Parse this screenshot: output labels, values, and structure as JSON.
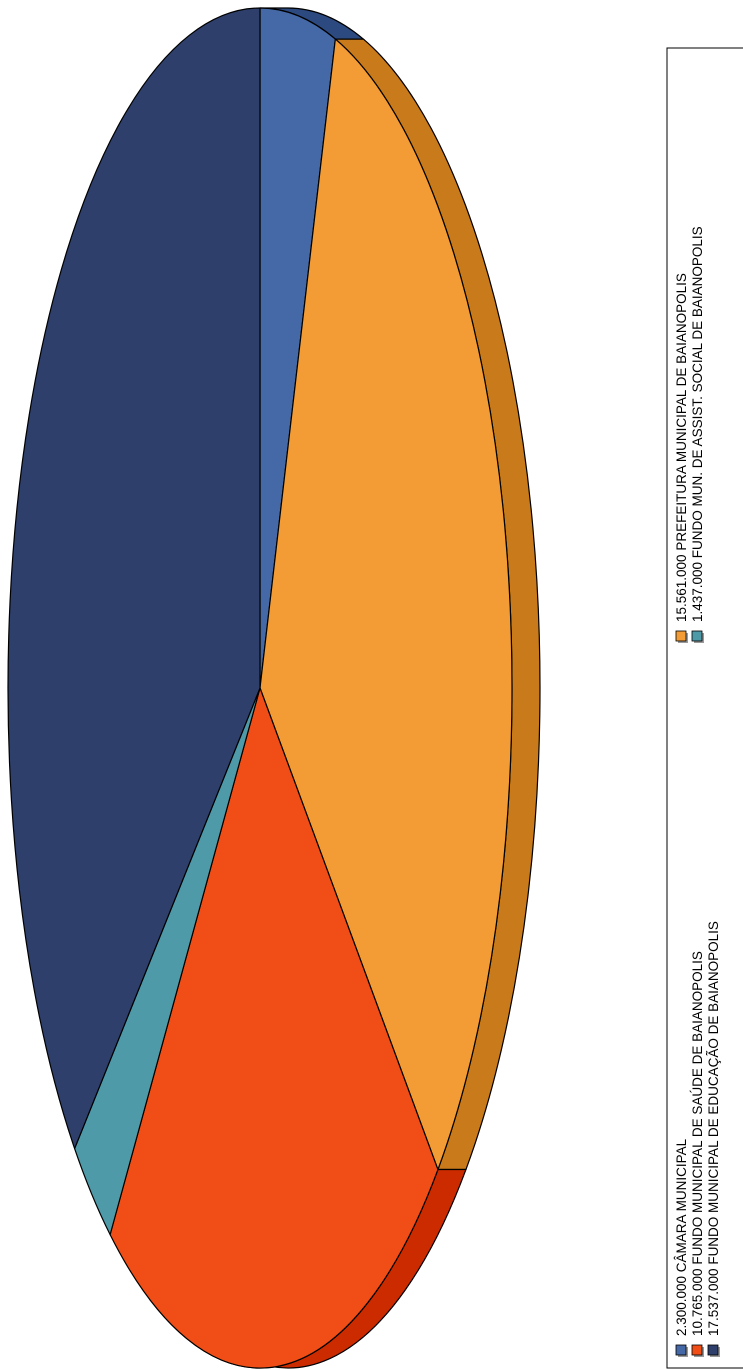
{
  "chart_data": {
    "type": "pie",
    "title": "",
    "series": [
      {
        "name": "CÂMARA MUNICIPAL",
        "value": 2300000,
        "label": "2.300.000 CÂMARA MUNICIPAL",
        "color": "#4568a6",
        "side_color": "#2c4a80"
      },
      {
        "name": "PREFEITURA MUNICIPAL DE BAIANOPOLIS",
        "value": 15561000,
        "label": "15.561.000 PREFEITURA MUNICIPAL DE BAIANOPOLIS",
        "color": "#f39c35",
        "side_color": "#c97a1a"
      },
      {
        "name": "FUNDO MUNICIPAL DE SAÚDE DE BAIANOPOLIS",
        "value": 10765000,
        "label": "10.765.000 FUNDO MUNICIPAL DE SAÚDE DE BAIANOPOLIS",
        "color": "#f04e16",
        "side_color": "#cc2b00"
      },
      {
        "name": "FUNDO MUN. DE ASSIST. SOCIAL DE BAIANOPOLIS",
        "value": 1437000,
        "label": "1.437.000 FUNDO MUN. DE ASSIST. SOCIAL DE BAIANOPOLIS",
        "color": "#4f9aa9",
        "side_color": "#2f7584"
      },
      {
        "name": "FUNDO MUNICIPAL DE EDUCAÇÃO DE BAIANOPOLIS",
        "value": 17537000,
        "label": "17.537.000 FUNDO MUNICIPAL DE EDUCAÇÃO DE BAIANOPOLIS",
        "color": "#2e3f6b",
        "side_color": "#10224d"
      }
    ],
    "slice_order": [
      0,
      1,
      2,
      3,
      4
    ],
    "legend": {
      "placement": "right",
      "orientation": "rotated-90",
      "columns": [
        [
          0,
          2,
          4
        ],
        [
          1,
          3
        ]
      ]
    }
  }
}
